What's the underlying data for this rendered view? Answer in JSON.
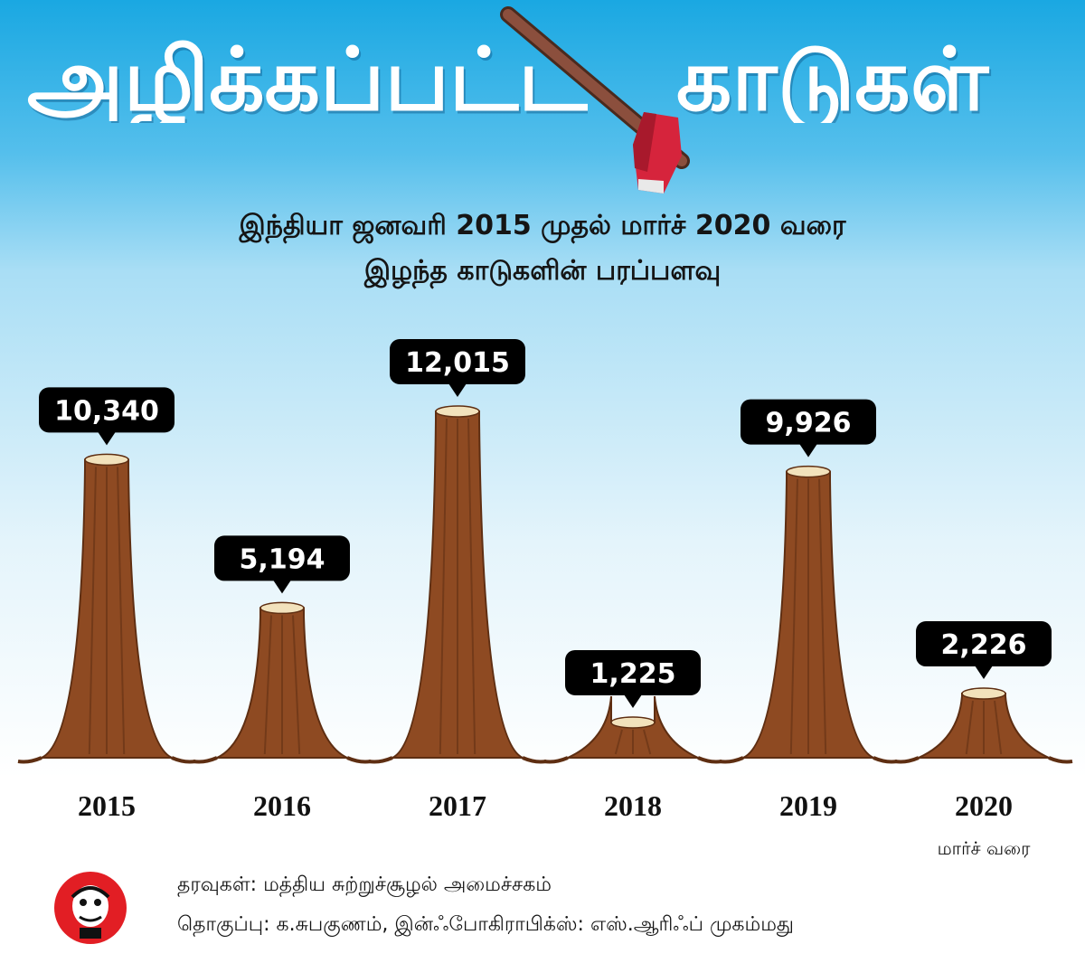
{
  "title": {
    "left": "அழிக்கப்பட்ட",
    "right": "காடுகள்"
  },
  "subtitle": {
    "line1": "இந்தியா ஜனவரி 2015 முதல் மார்ச் 2020 வரை",
    "line2": "இழந்த காடுகளின் பரப்பளவு"
  },
  "chart_data": {
    "type": "bar",
    "categories": [
      "2015",
      "2016",
      "2017",
      "2018",
      "2019",
      "2020"
    ],
    "values": [
      10340,
      5194,
      12015,
      1225,
      9926,
      2226
    ],
    "value_labels": [
      "10,340",
      "5,194",
      "12,015",
      "1,225",
      "9,926",
      "2,226"
    ],
    "category_notes": [
      "",
      "",
      "",
      "",
      "",
      "மார்ச் வரை"
    ],
    "ylim": [
      0,
      12015
    ]
  },
  "footer": {
    "source": "தரவுகள்: மத்திய சுற்றுச்சூழல் அமைச்சகம்",
    "credits": "தொகுப்பு: க.சுபகுணம், இன்ஃபோகிராபிக்ஸ்: எஸ்.ஆரிஃப் முகம்மது"
  },
  "colors": {
    "sky_top": "#1aa8e2",
    "trunk": "#8e4a22",
    "trunk_dark": "#5e2e12",
    "stump_top": "#f2e2bc",
    "label_bg": "#000000",
    "label_text": "#ffffff",
    "axe_blade": "#d6243c",
    "logo_red": "#e21e24"
  }
}
